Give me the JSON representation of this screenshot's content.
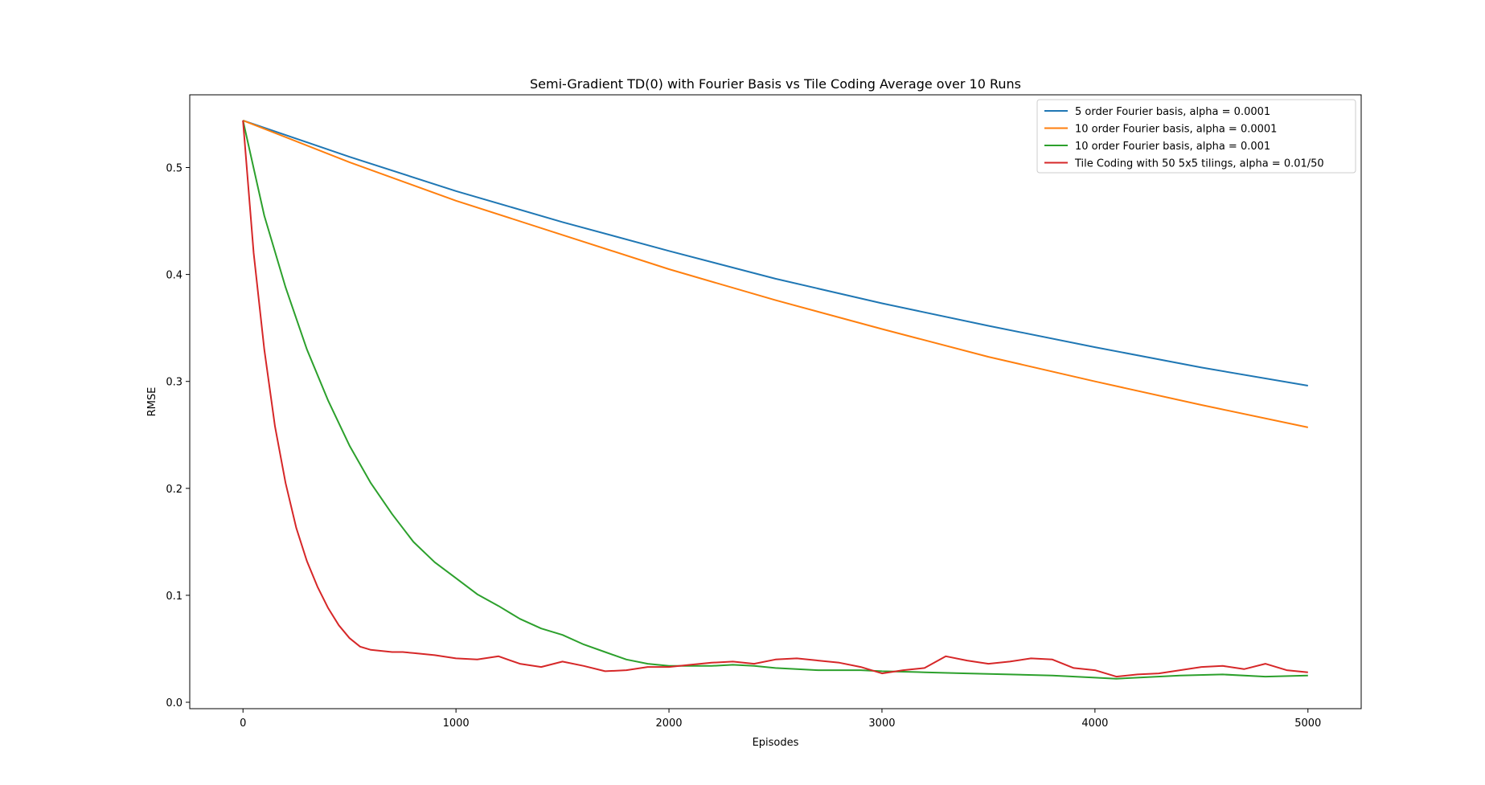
{
  "chart_data": {
    "type": "line",
    "title": "Semi-Gradient TD(0) with Fourier Basis vs Tile Coding Average over 10 Runs",
    "xlabel": "Episodes",
    "ylabel": "RMSE",
    "xlim": [
      -250,
      5250
    ],
    "ylim": [
      -0.006,
      0.568
    ],
    "xticks": [
      0,
      1000,
      2000,
      3000,
      4000,
      5000
    ],
    "xtick_labels": [
      "0",
      "1000",
      "2000",
      "3000",
      "4000",
      "5000"
    ],
    "yticks": [
      0.0,
      0.1,
      0.2,
      0.3,
      0.4,
      0.5
    ],
    "ytick_labels": [
      "0.0",
      "0.1",
      "0.2",
      "0.3",
      "0.4",
      "0.5"
    ],
    "grid": false,
    "legend_position": "top-right",
    "series": [
      {
        "name": "5 order Fourier basis, alpha = 0.0001",
        "color": "#1f77b4",
        "x": [
          0,
          500,
          1000,
          1500,
          2000,
          2500,
          3000,
          3500,
          4000,
          4500,
          5000
        ],
        "y": [
          0.544,
          0.51,
          0.478,
          0.449,
          0.422,
          0.396,
          0.373,
          0.352,
          0.332,
          0.313,
          0.296
        ]
      },
      {
        "name": "10 order Fourier basis, alpha = 0.0001",
        "color": "#ff7f0e",
        "x": [
          0,
          500,
          1000,
          1500,
          2000,
          2500,
          3000,
          3500,
          4000,
          4500,
          5000
        ],
        "y": [
          0.544,
          0.505,
          0.469,
          0.437,
          0.405,
          0.376,
          0.349,
          0.323,
          0.3,
          0.278,
          0.257
        ]
      },
      {
        "name": "10 order Fourier basis, alpha = 0.001",
        "color": "#2ca02c",
        "x": [
          0,
          100,
          200,
          300,
          400,
          500,
          600,
          700,
          800,
          900,
          1000,
          1100,
          1200,
          1300,
          1400,
          1500,
          1600,
          1700,
          1800,
          1900,
          2000,
          2100,
          2200,
          2300,
          2400,
          2500,
          2600,
          2700,
          2800,
          2900,
          3000,
          3200,
          3400,
          3600,
          3800,
          4000,
          4100,
          4200,
          4400,
          4600,
          4800,
          5000
        ],
        "y": [
          0.544,
          0.455,
          0.388,
          0.33,
          0.282,
          0.24,
          0.205,
          0.176,
          0.15,
          0.131,
          0.116,
          0.101,
          0.09,
          0.078,
          0.069,
          0.063,
          0.054,
          0.047,
          0.04,
          0.036,
          0.034,
          0.034,
          0.034,
          0.035,
          0.034,
          0.032,
          0.031,
          0.03,
          0.03,
          0.03,
          0.029,
          0.028,
          0.027,
          0.026,
          0.025,
          0.023,
          0.022,
          0.023,
          0.025,
          0.026,
          0.024,
          0.025
        ]
      },
      {
        "name": "Tile Coding with 50 5x5 tilings, alpha = 0.01/50",
        "color": "#d62728",
        "x": [
          0,
          50,
          100,
          150,
          200,
          250,
          300,
          350,
          400,
          450,
          500,
          550,
          600,
          650,
          700,
          750,
          800,
          900,
          1000,
          1100,
          1200,
          1300,
          1400,
          1500,
          1600,
          1700,
          1800,
          1900,
          2000,
          2100,
          2200,
          2300,
          2400,
          2500,
          2600,
          2700,
          2800,
          2900,
          3000,
          3100,
          3200,
          3300,
          3400,
          3500,
          3600,
          3700,
          3800,
          3900,
          4000,
          4100,
          4200,
          4300,
          4400,
          4500,
          4600,
          4700,
          4800,
          4900,
          5000
        ],
        "y": [
          0.544,
          0.42,
          0.33,
          0.258,
          0.205,
          0.163,
          0.132,
          0.108,
          0.088,
          0.072,
          0.06,
          0.052,
          0.049,
          0.048,
          0.047,
          0.047,
          0.046,
          0.044,
          0.041,
          0.04,
          0.043,
          0.036,
          0.033,
          0.038,
          0.034,
          0.029,
          0.03,
          0.033,
          0.033,
          0.035,
          0.037,
          0.038,
          0.036,
          0.04,
          0.041,
          0.039,
          0.037,
          0.033,
          0.027,
          0.03,
          0.032,
          0.043,
          0.039,
          0.036,
          0.038,
          0.041,
          0.04,
          0.032,
          0.03,
          0.024,
          0.026,
          0.027,
          0.03,
          0.033,
          0.034,
          0.031,
          0.036,
          0.03,
          0.028
        ]
      }
    ]
  }
}
